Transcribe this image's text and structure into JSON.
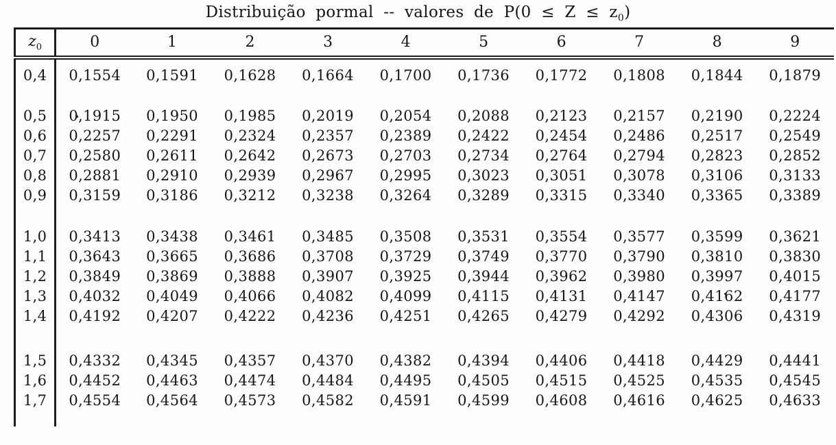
{
  "title": {
    "prefix": "Distribuição pormal -- valores de P(0 ≤ Z ≤ z",
    "sub": "0",
    "suffix": ")"
  },
  "table": {
    "corner_label": "z",
    "corner_sub": "0",
    "col_headers": [
      "0",
      "1",
      "2",
      "3",
      "4",
      "5",
      "6",
      "7",
      "8",
      "9"
    ],
    "row_groups": [
      {
        "rows": [
          {
            "z": "0,4",
            "values": [
              "0,1554",
              "0,1591",
              "0,1628",
              "0,1664",
              "0,1700",
              "0,1736",
              "0,1772",
              "0,1808",
              "0,1844",
              "0,1879"
            ]
          }
        ]
      },
      {
        "rows": [
          {
            "z": "0,5",
            "values": [
              "0,1915",
              "0,1950",
              "0,1985",
              "0,2019",
              "0,2054",
              "0,2088",
              "0,2123",
              "0,2157",
              "0,2190",
              "0,2224"
            ]
          },
          {
            "z": "0,6",
            "values": [
              "0,2257",
              "0,2291",
              "0,2324",
              "0,2357",
              "0,2389",
              "0,2422",
              "0,2454",
              "0,2486",
              "0,2517",
              "0,2549"
            ]
          },
          {
            "z": "0,7",
            "values": [
              "0,2580",
              "0,2611",
              "0,2642",
              "0,2673",
              "0,2703",
              "0,2734",
              "0,2764",
              "0,2794",
              "0,2823",
              "0,2852"
            ]
          },
          {
            "z": "0,8",
            "values": [
              "0,2881",
              "0,2910",
              "0,2939",
              "0,2967",
              "0,2995",
              "0,3023",
              "0,3051",
              "0,3078",
              "0,3106",
              "0,3133"
            ]
          },
          {
            "z": "0,9",
            "values": [
              "0,3159",
              "0,3186",
              "0,3212",
              "0,3238",
              "0,3264",
              "0,3289",
              "0,3315",
              "0,3340",
              "0,3365",
              "0,3389"
            ]
          }
        ]
      },
      {
        "rows": [
          {
            "z": "1,0",
            "values": [
              "0,3413",
              "0,3438",
              "0,3461",
              "0,3485",
              "0,3508",
              "0,3531",
              "0,3554",
              "0,3577",
              "0,3599",
              "0,3621"
            ]
          },
          {
            "z": "1,1",
            "values": [
              "0,3643",
              "0,3665",
              "0,3686",
              "0,3708",
              "0,3729",
              "0,3749",
              "0,3770",
              "0,3790",
              "0,3810",
              "0,3830"
            ]
          },
          {
            "z": "1,2",
            "values": [
              "0,3849",
              "0,3869",
              "0,3888",
              "0,3907",
              "0,3925",
              "0,3944",
              "0,3962",
              "0,3980",
              "0,3997",
              "0,4015"
            ]
          },
          {
            "z": "1,3",
            "values": [
              "0,4032",
              "0,4049",
              "0,4066",
              "0,4082",
              "0,4099",
              "0,4115",
              "0,4131",
              "0,4147",
              "0,4162",
              "0,4177"
            ]
          },
          {
            "z": "1,4",
            "values": [
              "0,4192",
              "0,4207",
              "0,4222",
              "0,4236",
              "0,4251",
              "0,4265",
              "0,4279",
              "0,4292",
              "0,4306",
              "0,4319"
            ]
          }
        ]
      },
      {
        "rows": [
          {
            "z": "1,5",
            "values": [
              "0,4332",
              "0,4345",
              "0,4357",
              "0,4370",
              "0,4382",
              "0,4394",
              "0,4406",
              "0,4418",
              "0,4429",
              "0,4441"
            ]
          },
          {
            "z": "1,6",
            "values": [
              "0,4452",
              "0,4463",
              "0,4474",
              "0,4484",
              "0,4495",
              "0,4505",
              "0,4515",
              "0,4525",
              "0,4535",
              "0,4545"
            ]
          },
          {
            "z": "1,7",
            "values": [
              "0,4554",
              "0,4564",
              "0,4573",
              "0,4582",
              "0,4591",
              "0,4599",
              "0,4608",
              "0,4616",
              "0,4625",
              "0,4633"
            ]
          }
        ]
      }
    ]
  }
}
